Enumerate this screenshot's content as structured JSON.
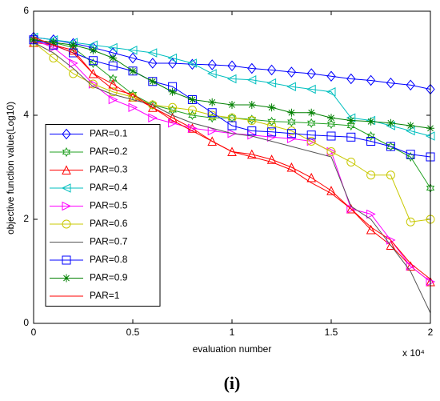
{
  "chart_data": {
    "type": "line",
    "ylabel": "objective function value(Log10)",
    "xlabel": "evaluation number",
    "x_multiplier": "x 10⁴",
    "caption": "(i)",
    "x": [
      0,
      0.1,
      0.2,
      0.3,
      0.4,
      0.5,
      0.6,
      0.7,
      0.8,
      0.9,
      1,
      1.1,
      1.2,
      1.3,
      1.4,
      1.5,
      1.6,
      1.7,
      1.8,
      1.9,
      2
    ],
    "xlim": [
      0,
      2
    ],
    "xticks": [
      0,
      0.5,
      1,
      1.5,
      2
    ],
    "ylim": [
      0,
      6
    ],
    "yticks": [
      0,
      2,
      4,
      6
    ],
    "grid": false,
    "legend": "center left",
    "series": [
      {
        "name": "PAR=0.1",
        "color": "#0000ff",
        "marker": "diamond",
        "values": [
          5.5,
          5.45,
          5.38,
          5.3,
          5.2,
          5.1,
          5.0,
          5.0,
          4.98,
          4.97,
          4.95,
          4.9,
          4.87,
          4.83,
          4.8,
          4.75,
          4.7,
          4.67,
          4.62,
          4.58,
          4.5
        ]
      },
      {
        "name": "PAR=0.2",
        "color": "#22a022",
        "marker": "hexagram",
        "values": [
          5.45,
          5.4,
          5.3,
          5.0,
          4.7,
          4.4,
          4.2,
          4.1,
          4.0,
          3.95,
          3.95,
          3.92,
          3.88,
          3.87,
          3.85,
          3.83,
          3.8,
          3.6,
          3.4,
          3.2,
          2.6
        ]
      },
      {
        "name": "PAR=0.3",
        "color": "#ff0000",
        "marker": "triangle-up",
        "values": [
          5.4,
          5.35,
          5.25,
          4.8,
          4.6,
          4.35,
          4.15,
          3.95,
          3.75,
          3.5,
          3.3,
          3.25,
          3.15,
          3.0,
          2.8,
          2.55,
          2.2,
          1.8,
          1.5,
          1.1,
          0.8
        ]
      },
      {
        "name": "PAR=0.4",
        "color": "#00bfbf",
        "marker": "triangle-left",
        "values": [
          5.5,
          5.45,
          5.4,
          5.35,
          5.3,
          5.25,
          5.2,
          5.1,
          5.0,
          4.8,
          4.7,
          4.68,
          4.62,
          4.55,
          4.5,
          4.45,
          3.95,
          3.9,
          3.8,
          3.7,
          3.6
        ]
      },
      {
        "name": "PAR=0.5",
        "color": "#ff00ff",
        "marker": "triangle-right",
        "values": [
          5.45,
          5.3,
          5.0,
          4.6,
          4.3,
          4.15,
          3.95,
          3.85,
          3.75,
          3.7,
          3.65,
          3.62,
          3.58,
          3.55,
          3.5,
          3.3,
          2.2,
          2.1,
          1.6,
          1.1,
          0.8
        ]
      },
      {
        "name": "PAR=0.6",
        "color": "#c8c800",
        "marker": "circle",
        "values": [
          5.4,
          5.1,
          4.8,
          4.6,
          4.45,
          4.35,
          4.2,
          4.15,
          4.1,
          4.0,
          3.95,
          3.9,
          3.8,
          3.7,
          3.5,
          3.3,
          3.1,
          2.85,
          2.85,
          1.95,
          2.0
        ]
      },
      {
        "name": "PAR=0.7",
        "color": "#555555",
        "marker": "none",
        "values": [
          5.4,
          5.2,
          4.9,
          4.55,
          4.4,
          4.3,
          4.2,
          4.0,
          3.85,
          3.75,
          3.65,
          3.6,
          3.5,
          3.4,
          3.3,
          3.2,
          2.25,
          2.0,
          1.5,
          1.0,
          0.2
        ]
      },
      {
        "name": "PAR=0.8",
        "color": "#0000ff",
        "marker": "square",
        "values": [
          5.45,
          5.35,
          5.2,
          5.05,
          4.95,
          4.85,
          4.65,
          4.55,
          4.3,
          4.05,
          3.8,
          3.7,
          3.68,
          3.65,
          3.62,
          3.6,
          3.58,
          3.5,
          3.4,
          3.25,
          3.2
        ]
      },
      {
        "name": "PAR=0.9",
        "color": "#008000",
        "marker": "asterisk",
        "values": [
          5.45,
          5.4,
          5.35,
          5.25,
          5.1,
          4.85,
          4.65,
          4.45,
          4.3,
          4.25,
          4.2,
          4.2,
          4.15,
          4.05,
          4.05,
          3.95,
          3.9,
          3.88,
          3.85,
          3.8,
          3.75
        ]
      },
      {
        "name": "PAR=1",
        "color": "#ff0000",
        "marker": "none",
        "values": [
          5.5,
          5.35,
          5.2,
          4.8,
          4.5,
          4.4,
          4.15,
          3.9,
          3.7,
          3.5,
          3.3,
          3.2,
          3.1,
          2.95,
          2.7,
          2.5,
          2.2,
          1.85,
          1.6,
          1.15,
          0.85
        ]
      }
    ]
  }
}
